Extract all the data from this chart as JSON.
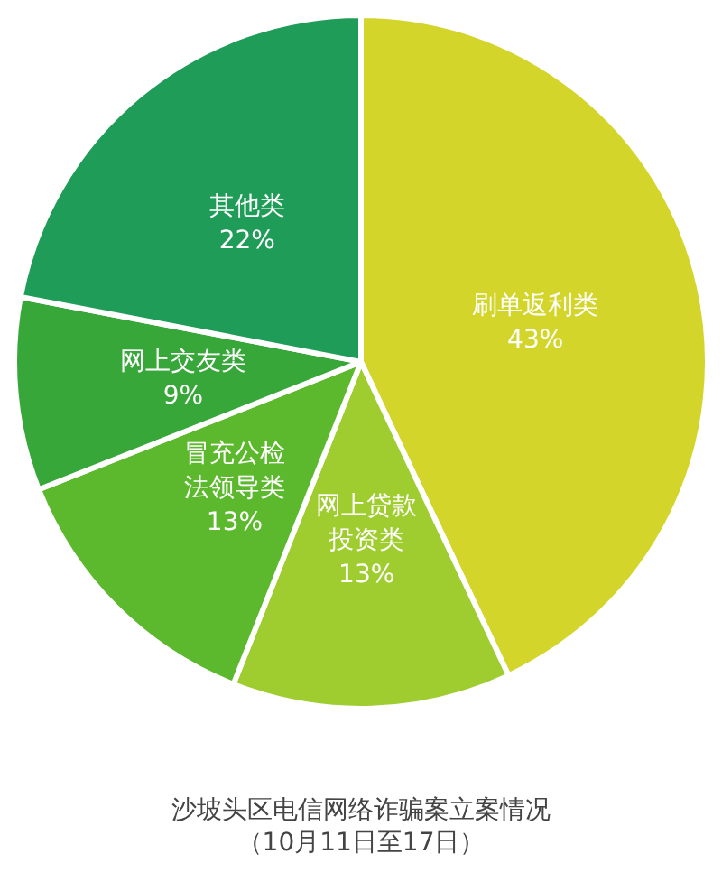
{
  "chart_data": {
    "type": "pie",
    "title": "沙坡头区电信网络诈骗案立案情况",
    "subtitle": "（10月11日至17日）",
    "categories": [
      "刷单返利类",
      "网上贷款投资类",
      "冒充公检法领导类",
      "网上交友类",
      "其他类"
    ],
    "values": [
      43,
      13,
      13,
      9,
      22
    ],
    "value_labels": [
      "43%",
      "13%",
      "13%",
      "9%",
      "22%"
    ],
    "colors": [
      "#d3d52b",
      "#9fcd30",
      "#5cb92d",
      "#36a738",
      "#1f9d58"
    ],
    "legend": false
  }
}
